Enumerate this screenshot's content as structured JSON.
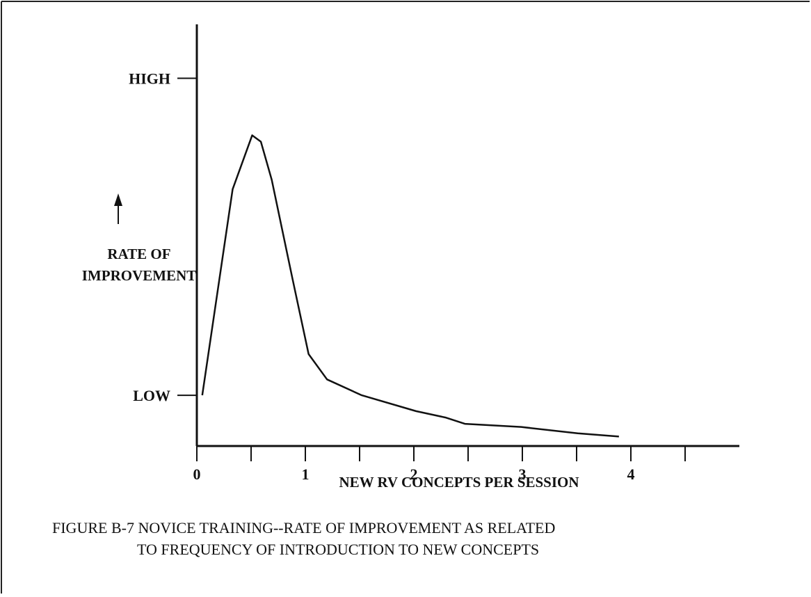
{
  "chart_data": {
    "type": "line",
    "x_label": "NEW RV CONCEPTS PER SESSION",
    "y_label_lines": [
      "RATE OF",
      "IMPROVEMENT"
    ],
    "caption_lines": [
      "FIGURE B-7  NOVICE TRAINING--RATE OF IMPROVEMENT AS RELATED",
      "TO FREQUENCY OF INTRODUCTION TO NEW CONCEPTS"
    ],
    "xlim": [
      0,
      5
    ],
    "xticks": [
      0,
      1,
      2,
      3,
      4
    ],
    "xminor_ticks": [
      0.5,
      1.5,
      2.5,
      3.5,
      4.5
    ],
    "ylim": [
      -0.16,
      1.17
    ],
    "yticks": [
      {
        "value": 0,
        "label": "LOW"
      },
      {
        "value": 1,
        "label": "HIGH"
      }
    ],
    "color": "#111111",
    "x": [
      0.05,
      0.33,
      0.51,
      0.59,
      0.69,
      0.88,
      1.03,
      1.2,
      1.52,
      2.02,
      2.29,
      2.47,
      2.99,
      3.51,
      3.89
    ],
    "values": [
      0,
      0.65,
      0.82,
      0.8,
      0.68,
      0.37,
      0.13,
      0.05,
      0,
      -0.05,
      -0.07,
      -0.09,
      -0.1,
      -0.12,
      -0.13
    ]
  }
}
